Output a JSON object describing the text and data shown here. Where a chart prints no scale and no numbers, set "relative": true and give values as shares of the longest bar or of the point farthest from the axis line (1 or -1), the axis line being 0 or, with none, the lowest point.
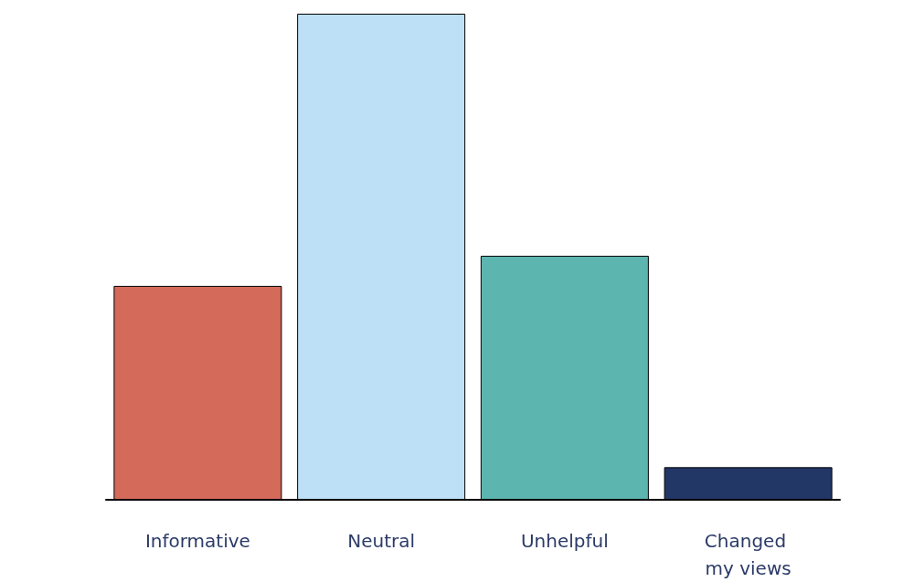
{
  "chart_data": {
    "type": "bar",
    "relative": true,
    "categories": [
      "Informative",
      "Neutral",
      "Unhelpful",
      "Changed my views"
    ],
    "values": [
      0.44,
      1,
      0.502,
      0.067
    ],
    "colors": [
      "#d46a5a",
      "#bde0f6",
      "#5db5b0",
      "#223766"
    ],
    "grid": false
  }
}
